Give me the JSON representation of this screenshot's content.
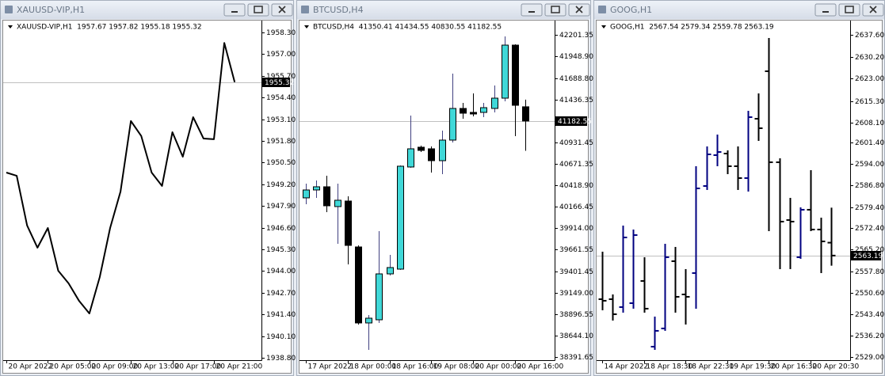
{
  "chart_data": [
    {
      "type": "line",
      "window_title": "XAUUSD-VIP,H1",
      "title": "XAUUSD-VIP,H1  1957.67 1957.82 1955.18 1955.32",
      "categories": [
        "20 Apr 2022",
        null,
        null,
        null,
        "20 Apr 05:00",
        null,
        null,
        null,
        "20 Apr 09:00",
        null,
        null,
        null,
        "20 Apr 13:00",
        null,
        null,
        null,
        "20 Apr 17:00",
        null,
        null,
        null,
        "20 Apr 21:00",
        null,
        null
      ],
      "values": [
        1949.9,
        1949.71,
        1946.73,
        1945.4,
        1946.58,
        1944.02,
        1943.26,
        1942.22,
        1941.46,
        1943.64,
        1946.58,
        1948.76,
        1952.99,
        1952.09,
        1949.9,
        1949.1,
        1952.32,
        1950.85,
        1953.22,
        1951.94,
        1951.9,
        1957.67,
        1955.32
      ],
      "color": "#000000",
      "current_price": 1955.32,
      "ylim": [
        1938.66,
        1958.96
      ],
      "yticks": [
        {
          "value": 1958.3,
          "label": "1958.30"
        },
        {
          "value": 1957.0,
          "label": "1957.00"
        },
        {
          "value": 1955.7,
          "label": "1955.70"
        },
        {
          "value": 1954.4,
          "label": "1954.40"
        },
        {
          "value": 1953.1,
          "label": "1953.10"
        },
        {
          "value": 1951.8,
          "label": "1951.80"
        },
        {
          "value": 1950.5,
          "label": "1950.50"
        },
        {
          "value": 1949.2,
          "label": "1949.20"
        },
        {
          "value": 1947.9,
          "label": "1947.90"
        },
        {
          "value": 1946.6,
          "label": "1946.60"
        },
        {
          "value": 1945.3,
          "label": "1945.30"
        },
        {
          "value": 1944.0,
          "label": "1944.00"
        },
        {
          "value": 1942.7,
          "label": "1942.70"
        },
        {
          "value": 1941.4,
          "label": "1941.40"
        },
        {
          "value": 1940.1,
          "label": "1940.10"
        },
        {
          "value": 1938.8,
          "label": "1938.80"
        }
      ]
    },
    {
      "type": "candlestick",
      "window_title": "BTCUSD,H4",
      "title": "BTCUSD,H4  41350.41 41434.55 40830.55 41182.55",
      "categories": [
        "17 Apr 2022",
        null,
        null,
        null,
        "18 Apr 00:00",
        null,
        null,
        null,
        "18 Apr 16:00",
        null,
        null,
        null,
        "19 Apr 08:00",
        null,
        null,
        null,
        "20 Apr 00:00",
        null,
        null,
        null,
        "20 Apr 16:00",
        null
      ],
      "open": [
        40273.4,
        40366.9,
        40404.4,
        40170.4,
        40235.9,
        39692.9,
        38794.3,
        38831.8,
        39374.6,
        39430.8,
        40638.4,
        40872.4,
        40853.6,
        40713.2,
        40956.5,
        41330.9,
        41284.1,
        41284.1,
        41330.9,
        41452.5,
        42079.7,
        41350.41
      ],
      "high": [
        40441.8,
        40479.2,
        40535.4,
        40441.8,
        40292.1,
        39711.6,
        38887.9,
        39880.2,
        39599.3,
        40657.2,
        41246.6,
        40891.0,
        40881.7,
        41068.8,
        41742.7,
        41396.4,
        41508.7,
        41396.4,
        41602.3,
        42182.6,
        42089.0,
        41434.55
      ],
      "low": [
        40198.5,
        40273.4,
        40104.8,
        39730.4,
        39487.0,
        38775.6,
        38476.1,
        38794.3,
        39355.9,
        39421.4,
        40629.0,
        40816.2,
        40572.9,
        40554.1,
        40928.5,
        41209.2,
        41237.3,
        41227.9,
        41284.1,
        41415.1,
        41003.3,
        40830.55
      ],
      "close": [
        40366.9,
        40404.4,
        40179.7,
        40245.3,
        39711.6,
        38794.3,
        38850.5,
        39374.6,
        39449.5,
        40647.8,
        40853.6,
        40834.9,
        40713.2,
        40956.5,
        41330.9,
        41274.7,
        41265.4,
        41340.2,
        41452.5,
        42079.7,
        41368.3,
        41182.55
      ],
      "up_color": "#40d8d8",
      "down_color": "#000000",
      "current_price": 41182.55,
      "ylim": [
        38354.2,
        42360.5
      ],
      "yticks": [
        42201.35,
        {
          "value": 41948.9,
          "label": "41948.90"
        },
        {
          "value": 41688.8,
          "label": "41688.80"
        },
        41436.35,
        40931.45,
        40671.35,
        {
          "value": 40418.9,
          "label": "40418.90"
        },
        40166.45,
        {
          "value": 39914.0,
          "label": "39914.00"
        },
        39661.55,
        39401.45,
        {
          "value": 39149.0,
          "label": "39149.00"
        },
        38896.55,
        {
          "value": 38644.1,
          "label": "38644.10"
        },
        38391.65
      ]
    },
    {
      "type": "ohlc",
      "window_title": "GOOG,H1",
      "title": "GOOG,H1  2567.54 2579.34 2559.78 2563.19",
      "categories": [
        "14 Apr 2022",
        null,
        null,
        null,
        "18 Apr 18:30",
        null,
        null,
        null,
        "18 Apr 22:30",
        null,
        null,
        null,
        "19 Apr 19:30",
        null,
        null,
        null,
        "20 Apr 16:30",
        null,
        null,
        null,
        "20 Apr 20:30",
        null,
        null
      ],
      "open": [
        2548.49,
        2548.49,
        2545.82,
        2547.15,
        2554.63,
        2532.48,
        2538.62,
        2561.3,
        2550.09,
        2557.29,
        2586.64,
        2597.05,
        2597.58,
        2593.31,
        2589.31,
        2609.32,
        2625.33,
        2594.65,
        2575.17,
        2562.63,
        2578.64,
        2571.97,
        2567.54
      ],
      "high": [
        2564.5,
        2550.09,
        2573.3,
        2571.97,
        2562.63,
        2542.62,
        2567.16,
        2566.1,
        2558.63,
        2593.31,
        2599.98,
        2603.98,
        2598.65,
        2599.98,
        2611.99,
        2617.85,
        2636.53,
        2595.98,
        2582.64,
        2579.44,
        2591.98,
        2575.97,
        2579.34
      ],
      "low": [
        2544.75,
        2541.29,
        2543.95,
        2545.29,
        2543.95,
        2531.41,
        2537.82,
        2543.95,
        2539.95,
        2545.29,
        2585.31,
        2593.31,
        2590.64,
        2585.31,
        2584.77,
        2601.85,
        2571.43,
        2558.63,
        2558.63,
        2562.1,
        2571.43,
        2557.29,
        2559.78
      ],
      "close": [
        2547.96,
        2543.42,
        2569.3,
        2570.1,
        2545.29,
        2537.82,
        2562.63,
        2549.29,
        2549.29,
        2585.84,
        2597.31,
        2598.11,
        2593.31,
        2589.31,
        2609.85,
        2606.12,
        2594.65,
        2574.64,
        2574.64,
        2578.64,
        2571.97,
        2567.97,
        2563.19
      ],
      "up_color": "#000080",
      "down_color": "#000000",
      "current_price": 2563.19,
      "ylim": [
        2527.93,
        2642.14
      ],
      "yticks": [
        {
          "value": 2637.6,
          "label": "2637.60"
        },
        {
          "value": 2630.2,
          "label": "2630.20"
        },
        {
          "value": 2623.0,
          "label": "2623.00"
        },
        {
          "value": 2615.3,
          "label": "2615.30"
        },
        {
          "value": 2608.1,
          "label": "2608.10"
        },
        {
          "value": 2601.4,
          "label": "2601.40"
        },
        {
          "value": 2594.0,
          "label": "2594.00"
        },
        {
          "value": 2586.8,
          "label": "2586.80"
        },
        {
          "value": 2579.4,
          "label": "2579.40"
        },
        {
          "value": 2572.4,
          "label": "2572.40"
        },
        {
          "value": 2565.2,
          "label": "2565.20"
        },
        {
          "value": 2557.8,
          "label": "2557.80"
        },
        {
          "value": 2550.6,
          "label": "2550.60"
        },
        {
          "value": 2543.4,
          "label": "2543.40"
        },
        {
          "value": 2536.2,
          "label": "2536.20"
        },
        {
          "value": 2529.0,
          "label": "2529.00"
        }
      ]
    }
  ]
}
